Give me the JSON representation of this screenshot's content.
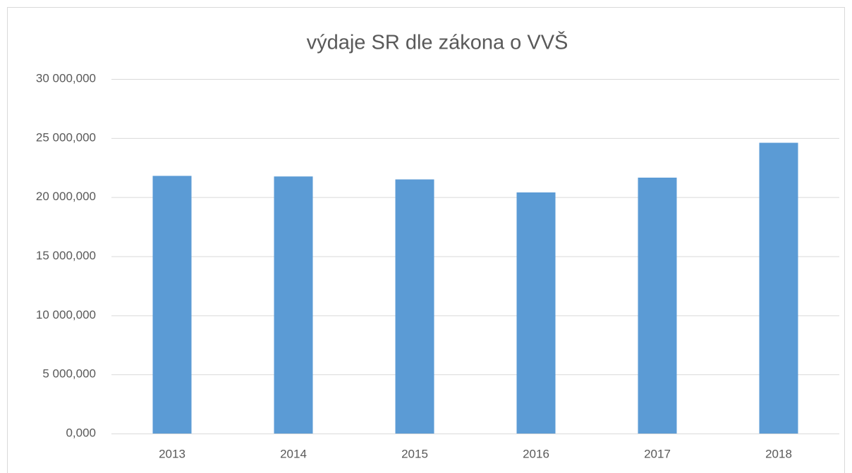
{
  "chart_data": {
    "type": "bar",
    "title": "výdaje SR dle zákona o VVŠ",
    "categories": [
      "2013",
      "2014",
      "2015",
      "2016",
      "2017",
      "2018"
    ],
    "values": [
      21800000,
      21750000,
      21500000,
      20400000,
      21650000,
      24600000
    ],
    "color": "#5b9bd5",
    "ylim": [
      0,
      30000000
    ],
    "yticks": [
      {
        "value": 0,
        "label": "0,000"
      },
      {
        "value": 5000000,
        "label": "5 000,000"
      },
      {
        "value": 10000000,
        "label": "10 000,000"
      },
      {
        "value": 15000000,
        "label": "15 000,000"
      },
      {
        "value": 20000000,
        "label": "20 000,000"
      },
      {
        "value": 25000000,
        "label": "25 000,000"
      },
      {
        "value": 30000000,
        "label": "30 000,000"
      }
    ],
    "grid": true
  }
}
